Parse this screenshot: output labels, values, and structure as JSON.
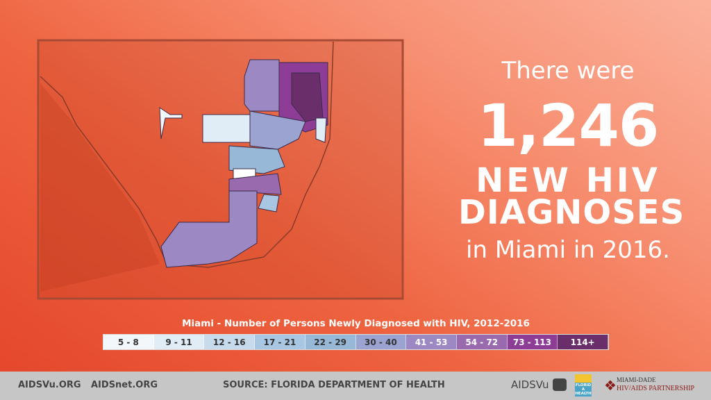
{
  "headline": {
    "line1": "There were",
    "count": "1,246",
    "line3": "NEW HIV",
    "line4": "DIAGNOSES",
    "line5": "in Miami in 2016."
  },
  "legend": {
    "title": "Miami - Number of Persons Newly Diagnosed with HIV, 2012-2016",
    "bins": [
      {
        "label": "5 - 8",
        "color": "#f2f7fb",
        "text": "#333"
      },
      {
        "label": "9 - 11",
        "color": "#e0edf7",
        "text": "#333"
      },
      {
        "label": "12 - 16",
        "color": "#c7dbec",
        "text": "#333"
      },
      {
        "label": "17 - 21",
        "color": "#a9c7e2",
        "text": "#333"
      },
      {
        "label": "22 - 29",
        "color": "#98b8d8",
        "text": "#333"
      },
      {
        "label": "30 - 40",
        "color": "#9ba4d0",
        "text": "#333"
      },
      {
        "label": "41 - 53",
        "color": "#9c88c2",
        "text": "#fff"
      },
      {
        "label": "54 - 72",
        "color": "#9a6aae",
        "text": "#fff"
      },
      {
        "label": "73 - 113",
        "color": "#8e3d96",
        "text": "#fff"
      },
      {
        "label": "114+",
        "color": "#6a2e6a",
        "text": "#fff"
      }
    ]
  },
  "footer": {
    "link1": "AIDSVu.ORG",
    "link2": "AIDSnet.ORG",
    "source": "SOURCE: FLORIDA DEPARTMENT OF HEALTH",
    "logo1": "AIDSVu",
    "logo2": "FLORIDA HEALTH",
    "logo3_top": "MIAMI-DADE",
    "logo3_bottom": "HIV/AIDS PARTNERSHIP"
  }
}
